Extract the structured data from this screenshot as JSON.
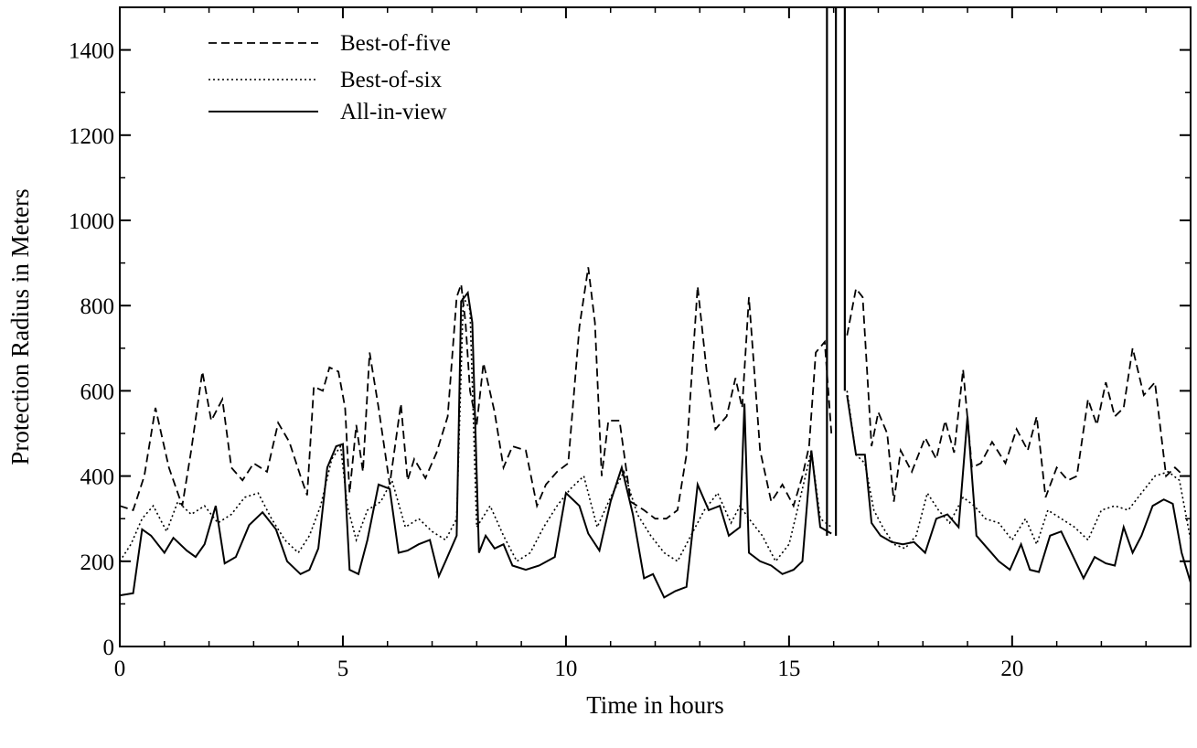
{
  "chart_data": {
    "type": "line",
    "title": "",
    "xlabel": "Time in hours",
    "ylabel": "Protection Radius in Meters",
    "xlim": [
      0,
      24
    ],
    "ylim": [
      0,
      1500
    ],
    "xticks": [
      0,
      5,
      10,
      15,
      20
    ],
    "yticks": [
      0,
      200,
      400,
      600,
      800,
      1000,
      1200,
      1400
    ],
    "grid": false,
    "legend_position": "top-left",
    "series": [
      {
        "name": "Best-of-five",
        "style": "dashed",
        "x": [
          0,
          0.3,
          0.55,
          0.8,
          1.1,
          1.4,
          1.6,
          1.85,
          2.05,
          2.3,
          2.5,
          2.75,
          3.0,
          3.3,
          3.55,
          3.8,
          4.05,
          4.2,
          4.35,
          4.55,
          4.7,
          4.9,
          5.05,
          5.15,
          5.3,
          5.45,
          5.6,
          5.8,
          6.05,
          6.3,
          6.45,
          6.6,
          6.85,
          7.1,
          7.35,
          7.55,
          7.65,
          7.75,
          7.85,
          8.0,
          8.15,
          8.4,
          8.6,
          8.8,
          9.1,
          9.35,
          9.55,
          9.8,
          10.05,
          10.3,
          10.5,
          10.65,
          10.8,
          10.95,
          11.2,
          11.45,
          11.75,
          12.0,
          12.25,
          12.5,
          12.7,
          12.95,
          13.15,
          13.35,
          13.6,
          13.8,
          13.95,
          14.1,
          14.35,
          14.6,
          14.85,
          15.1,
          15.3,
          15.45,
          15.6,
          15.8,
          15.95
        ],
        "y": [
          330,
          320,
          400,
          560,
          420,
          330,
          460,
          645,
          530,
          580,
          420,
          390,
          430,
          410,
          525,
          480,
          400,
          355,
          610,
          600,
          655,
          645,
          560,
          360,
          520,
          410,
          690,
          560,
          380,
          570,
          390,
          440,
          395,
          455,
          540,
          820,
          850,
          760,
          600,
          520,
          665,
          550,
          420,
          470,
          460,
          330,
          380,
          410,
          430,
          750,
          890,
          760,
          400,
          530,
          530,
          340,
          320,
          300,
          300,
          320,
          450,
          845,
          650,
          510,
          540,
          630,
          560,
          820,
          460,
          340,
          380,
          330,
          400,
          470,
          690,
          715,
          500
        ],
        "x_after_gap": [
          16.3,
          16.5,
          16.65,
          16.85,
          17.0,
          17.2,
          17.35,
          17.5,
          17.75,
          18.05,
          18.3,
          18.5,
          18.7,
          18.9,
          19.1,
          19.3,
          19.55,
          19.85,
          20.1,
          20.35,
          20.55,
          20.75,
          21.0,
          21.25,
          21.45,
          21.7,
          21.9,
          22.1,
          22.3,
          22.5,
          22.7,
          22.95,
          23.2,
          23.45,
          23.65,
          23.85,
          24.0
        ],
        "y_after_gap": [
          730,
          840,
          820,
          470,
          550,
          500,
          340,
          460,
          410,
          490,
          440,
          530,
          455,
          650,
          420,
          430,
          480,
          430,
          510,
          460,
          540,
          350,
          420,
          390,
          400,
          580,
          520,
          620,
          540,
          560,
          700,
          590,
          620,
          400,
          420,
          400,
          400
        ]
      },
      {
        "name": "Best-of-six",
        "style": "dotted",
        "x": [
          0,
          0.25,
          0.5,
          0.75,
          1.05,
          1.3,
          1.6,
          1.9,
          2.2,
          2.5,
          2.8,
          3.1,
          3.4,
          3.7,
          4.0,
          4.25,
          4.5,
          4.75,
          4.95,
          5.1,
          5.3,
          5.55,
          5.85,
          6.1,
          6.4,
          6.7,
          7.0,
          7.3,
          7.55,
          7.7,
          7.85,
          8.0,
          8.3,
          8.6,
          8.9,
          9.2,
          9.5,
          9.8,
          10.1,
          10.4,
          10.7,
          11.0,
          11.3,
          11.6,
          11.9,
          12.2,
          12.5,
          12.8,
          13.1,
          13.4,
          13.7,
          13.9,
          14.1,
          14.4,
          14.7,
          15.0,
          15.3,
          15.5,
          15.7,
          15.95
        ],
        "y": [
          200,
          240,
          300,
          330,
          270,
          340,
          310,
          330,
          290,
          310,
          350,
          360,
          300,
          250,
          220,
          260,
          330,
          440,
          470,
          330,
          250,
          320,
          340,
          390,
          280,
          300,
          270,
          250,
          300,
          820,
          790,
          280,
          330,
          260,
          200,
          220,
          280,
          330,
          370,
          400,
          280,
          350,
          410,
          310,
          260,
          220,
          200,
          260,
          320,
          360,
          290,
          330,
          300,
          260,
          200,
          240,
          370,
          460,
          300,
          280
        ],
        "x_after_gap": [
          16.3,
          16.5,
          16.7,
          16.9,
          17.1,
          17.35,
          17.6,
          17.85,
          18.1,
          18.35,
          18.6,
          18.9,
          19.15,
          19.4,
          19.7,
          20.0,
          20.3,
          20.55,
          20.8,
          21.1,
          21.4,
          21.7,
          22.0,
          22.3,
          22.6,
          22.9,
          23.2,
          23.5,
          23.75,
          24.0
        ],
        "y_after_gap": [
          600,
          450,
          430,
          320,
          280,
          240,
          230,
          260,
          360,
          320,
          290,
          350,
          330,
          300,
          290,
          250,
          300,
          240,
          320,
          300,
          280,
          250,
          320,
          330,
          320,
          360,
          400,
          410,
          390,
          250
        ]
      },
      {
        "name": "All-in-view",
        "style": "solid",
        "x": [
          0,
          0.3,
          0.5,
          0.7,
          1.0,
          1.2,
          1.5,
          1.7,
          1.9,
          2.15,
          2.35,
          2.6,
          2.9,
          3.2,
          3.5,
          3.75,
          4.05,
          4.25,
          4.45,
          4.65,
          4.85,
          5.0,
          5.15,
          5.35,
          5.55,
          5.8,
          6.05,
          6.25,
          6.45,
          6.7,
          6.95,
          7.15,
          7.3,
          7.55,
          7.65,
          7.8,
          7.9,
          8.05,
          8.2,
          8.4,
          8.6,
          8.8,
          9.1,
          9.4,
          9.75,
          10.0,
          10.3,
          10.5,
          10.75,
          11.0,
          11.25,
          11.5,
          11.75,
          11.95,
          12.2,
          12.45,
          12.7,
          12.95,
          13.2,
          13.45,
          13.65,
          13.9,
          14.0,
          14.1,
          14.35,
          14.6,
          14.85,
          15.1,
          15.3,
          15.5,
          15.7,
          15.95
        ],
        "y": [
          120,
          125,
          275,
          260,
          220,
          255,
          225,
          210,
          240,
          330,
          195,
          210,
          285,
          315,
          275,
          200,
          170,
          180,
          230,
          420,
          470,
          475,
          180,
          170,
          250,
          380,
          370,
          220,
          225,
          240,
          250,
          165,
          200,
          260,
          810,
          830,
          760,
          220,
          260,
          230,
          240,
          190,
          180,
          190,
          210,
          360,
          330,
          265,
          225,
          340,
          420,
          310,
          160,
          170,
          115,
          130,
          140,
          380,
          320,
          330,
          260,
          280,
          570,
          220,
          200,
          190,
          170,
          180,
          200,
          460,
          280,
          265
        ],
        "x_after_gap": [
          16.3,
          16.5,
          16.7,
          16.85,
          17.05,
          17.3,
          17.55,
          17.8,
          18.05,
          18.3,
          18.55,
          18.8,
          19.0,
          19.2,
          19.45,
          19.7,
          19.95,
          20.2,
          20.4,
          20.6,
          20.85,
          21.1,
          21.35,
          21.6,
          21.85,
          22.1,
          22.3,
          22.5,
          22.7,
          22.9,
          23.15,
          23.4,
          23.6,
          23.8,
          24.0
        ],
        "y_after_gap": [
          590,
          450,
          450,
          290,
          260,
          245,
          240,
          245,
          220,
          300,
          310,
          280,
          540,
          260,
          230,
          200,
          180,
          240,
          180,
          175,
          260,
          270,
          215,
          160,
          210,
          195,
          190,
          280,
          220,
          260,
          330,
          345,
          335,
          220,
          150
        ]
      }
    ],
    "vertical_spikes": [
      {
        "x": 15.85,
        "y_from": 260,
        "y_to": 1500
      },
      {
        "x": 16.05,
        "y_from": 260,
        "y_to": 1500
      },
      {
        "x": 16.25,
        "y_from": 600,
        "y_to": 1500
      }
    ]
  }
}
